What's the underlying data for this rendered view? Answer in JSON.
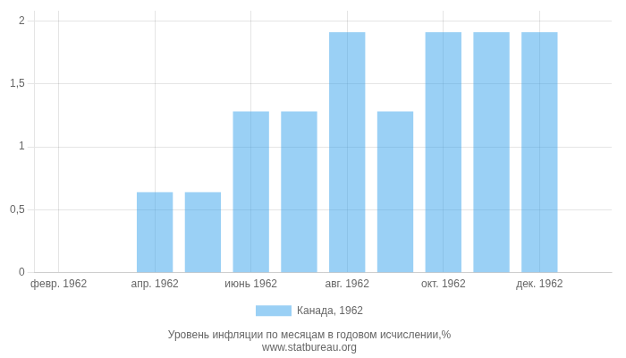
{
  "chart_data": {
    "type": "bar",
    "subtitle": "Уровень инфляции по месяцам в годовом исчислении,%",
    "annotations": [
      "www.statbureau.org"
    ],
    "categories": [
      "февр. 1962",
      null,
      "апр. 1962",
      null,
      "июнь 1962",
      null,
      "авг. 1962",
      null,
      "окт. 1962",
      null,
      "дек. 1962",
      null
    ],
    "series": [
      {
        "name": "Канада, 1962",
        "values": [
          null,
          null,
          0.64,
          0.64,
          1.28,
          1.28,
          1.91,
          1.28,
          1.91,
          1.91,
          1.91,
          null
        ]
      }
    ],
    "ylim": [
      0,
      2.08
    ],
    "yticks": [
      0,
      {
        "value": 0.5,
        "label": "0,5"
      },
      1,
      {
        "value": 1.5,
        "label": "1,5"
      },
      2
    ],
    "grid": true,
    "legend": "bottom"
  }
}
